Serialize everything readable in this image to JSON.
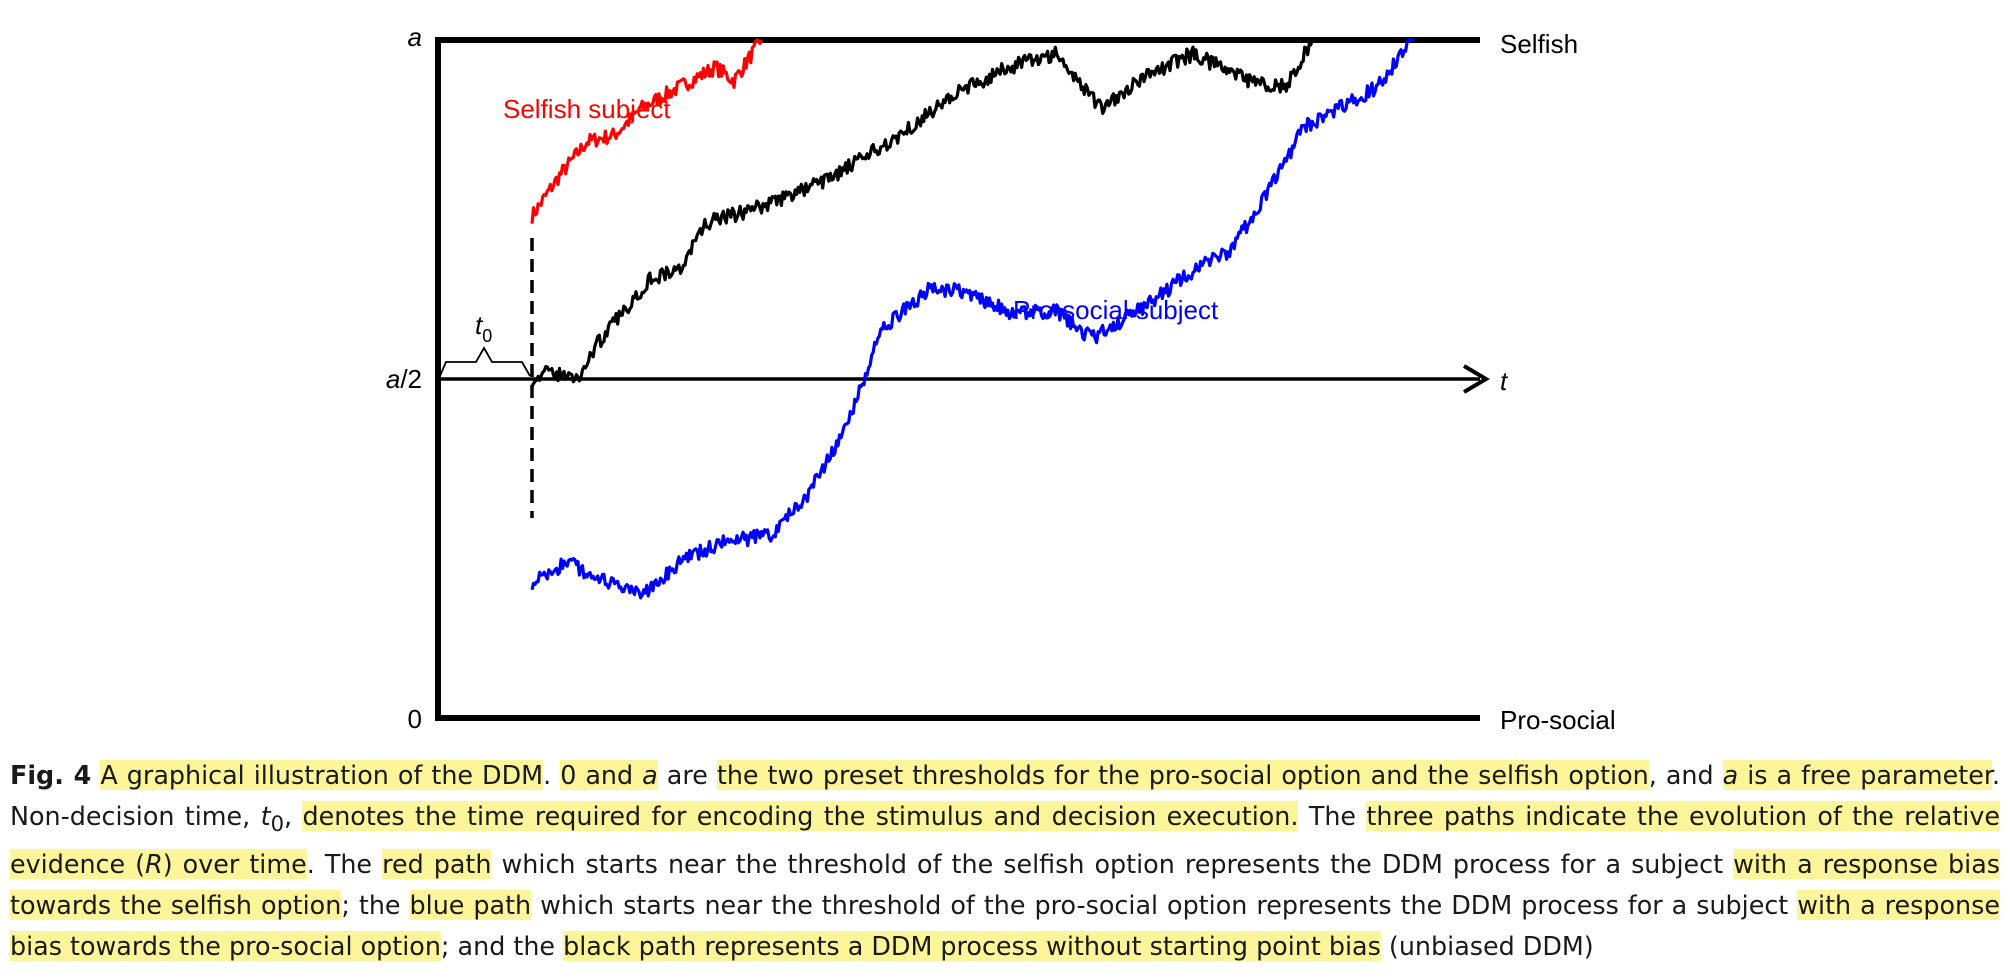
{
  "chart_data": {
    "type": "line",
    "title": "",
    "y_ticks": [
      "a",
      "a/2",
      "0"
    ],
    "x_axis_label": "t",
    "upper_threshold_label": "Selfish",
    "lower_threshold_label": "Pro-social",
    "non_decision_label": "t",
    "non_decision_subscript": "0",
    "colors": {
      "selfish": "#ff0000",
      "unbiased": "#000000",
      "prosocial": "#0000ff"
    },
    "series": [
      {
        "name": "Selfish subject",
        "color": "#ff0000",
        "anchors": [
          [
            0,
            0.74
          ],
          [
            0.03,
            0.8
          ],
          [
            0.06,
            0.85
          ],
          [
            0.09,
            0.86
          ],
          [
            0.12,
            0.9
          ],
          [
            0.16,
            0.93
          ],
          [
            0.2,
            0.96
          ],
          [
            0.22,
            0.94
          ],
          [
            0.25,
            1.0
          ]
        ]
      },
      {
        "color": "#000000",
        "anchors": [
          [
            0,
            0.5
          ],
          [
            0.02,
            0.51
          ],
          [
            0.05,
            0.5
          ],
          [
            0.07,
            0.55
          ],
          [
            0.1,
            0.6
          ],
          [
            0.13,
            0.65
          ],
          [
            0.16,
            0.66
          ],
          [
            0.19,
            0.73
          ],
          [
            0.24,
            0.75
          ],
          [
            0.28,
            0.77
          ],
          [
            0.33,
            0.8
          ],
          [
            0.39,
            0.85
          ],
          [
            0.46,
            0.92
          ],
          [
            0.52,
            0.96
          ],
          [
            0.57,
            0.98
          ],
          [
            0.62,
            0.9
          ],
          [
            0.66,
            0.94
          ],
          [
            0.72,
            0.98
          ],
          [
            0.78,
            0.94
          ],
          [
            0.82,
            0.93
          ],
          [
            0.85,
            1.0
          ]
        ]
      },
      {
        "name": "Pro-social subject",
        "color": "#0000ff",
        "anchors": [
          [
            0,
            0.2
          ],
          [
            0.04,
            0.23
          ],
          [
            0.08,
            0.2
          ],
          [
            0.12,
            0.18
          ],
          [
            0.16,
            0.23
          ],
          [
            0.21,
            0.26
          ],
          [
            0.26,
            0.27
          ],
          [
            0.3,
            0.33
          ],
          [
            0.34,
            0.42
          ],
          [
            0.38,
            0.57
          ],
          [
            0.43,
            0.63
          ],
          [
            0.47,
            0.63
          ],
          [
            0.52,
            0.6
          ],
          [
            0.57,
            0.6
          ],
          [
            0.61,
            0.56
          ],
          [
            0.66,
            0.6
          ],
          [
            0.71,
            0.65
          ],
          [
            0.76,
            0.69
          ],
          [
            0.8,
            0.77
          ],
          [
            0.84,
            0.87
          ],
          [
            0.88,
            0.9
          ],
          [
            0.92,
            0.93
          ],
          [
            0.96,
            1.0
          ]
        ]
      }
    ]
  },
  "caption": {
    "fig_label": "Fig. 4",
    "p1": "A graphical illustration of the DDM",
    "p2": ".",
    "p3": "0 and ",
    "p4": "a",
    "p5": " are ",
    "p6": "the two preset thresholds for the pro-social option and the selfish option",
    "p7": ", and ",
    "p8": "a",
    "p9": " is a free parameter",
    "p10": ". Non-decision time, ",
    "p11": "t",
    "p12": "0",
    "p13": ", ",
    "p14": "denotes the time required for encoding the stimulus and decision execution.",
    "p15": " The ",
    "p16": "three paths indicate the evolution of the relative evidence (",
    "p17": "R",
    "p18": ") over time",
    "p19": ". The ",
    "p20": "red path",
    "p21": " which starts near the threshold of the selfish option represents the DDM process for a subject ",
    "p22": "with a response bias towards the selfish option",
    "p23": "; the ",
    "p24": "blue path",
    "p25": " which starts near the threshold of the pro-social option represents the DDM process for a subject ",
    "p26": "with a response bias towards the pro-social option",
    "p27": "; and the ",
    "p28": "black path represents a DDM process without starting point bias",
    "p29": " (unbiased DDM)"
  }
}
